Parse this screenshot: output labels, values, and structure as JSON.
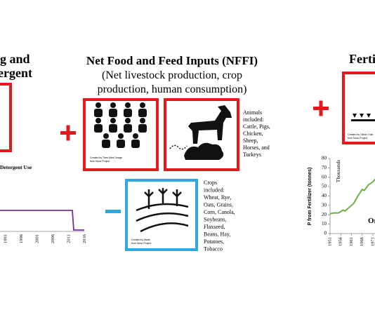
{
  "left": {
    "title_lines": [
      "g and",
      "ergent"
    ],
    "chart_title": "Detergent Use",
    "x_labels": [
      "1991",
      "1996",
      "2001",
      "2006",
      "2011",
      "2016"
    ]
  },
  "center": {
    "title": "Net Food and Feed Inputs (NFFI)",
    "subtitle_lines": [
      "(Net livestock production, crop",
      "production, human consumption)"
    ],
    "people_credit": [
      "Created by Thee Alice Design",
      "from Noun Project"
    ],
    "animal_credit": [],
    "animals_text": [
      "Animals",
      "included:",
      "Cattle, Pigs,",
      "Chicken,",
      "Sheep,",
      "Horses, and",
      "Turkeys"
    ],
    "crops_credit": [
      "Created by Made",
      "from Noun Project"
    ],
    "crops_text": [
      "Crops",
      "included:",
      "Wheat, Rye,",
      "Oats, Grains,",
      "Corn, Canola,",
      "Soybeans,",
      "Flaxseed,",
      "Beans, Hay,",
      "Potatoes,",
      "Tobacco"
    ]
  },
  "right": {
    "title": "Fertil",
    "icon_credit": [
      "Created by Olivier Guin",
      "from Noun Project"
    ],
    "annotation": "Or",
    "chart_data": {
      "type": "line",
      "ylabel": "P from Fertilizer (tonnes)",
      "unit_label": "Thousands",
      "x": [
        1951,
        1953,
        1955,
        1957,
        1958,
        1960,
        1962,
        1964,
        1966,
        1967,
        1969,
        1971,
        1972
      ],
      "values": [
        21,
        22,
        22,
        25,
        24,
        28,
        32,
        40,
        47,
        46,
        52,
        55,
        58
      ],
      "color": "#70ad47",
      "xlim": [
        1951,
        1972
      ],
      "xticks": [
        1951,
        1956,
        1961,
        1966,
        1971
      ],
      "ylim": [
        0,
        80
      ],
      "yticks": [
        0,
        10,
        20,
        30,
        40,
        50,
        60,
        70,
        80
      ]
    }
  }
}
